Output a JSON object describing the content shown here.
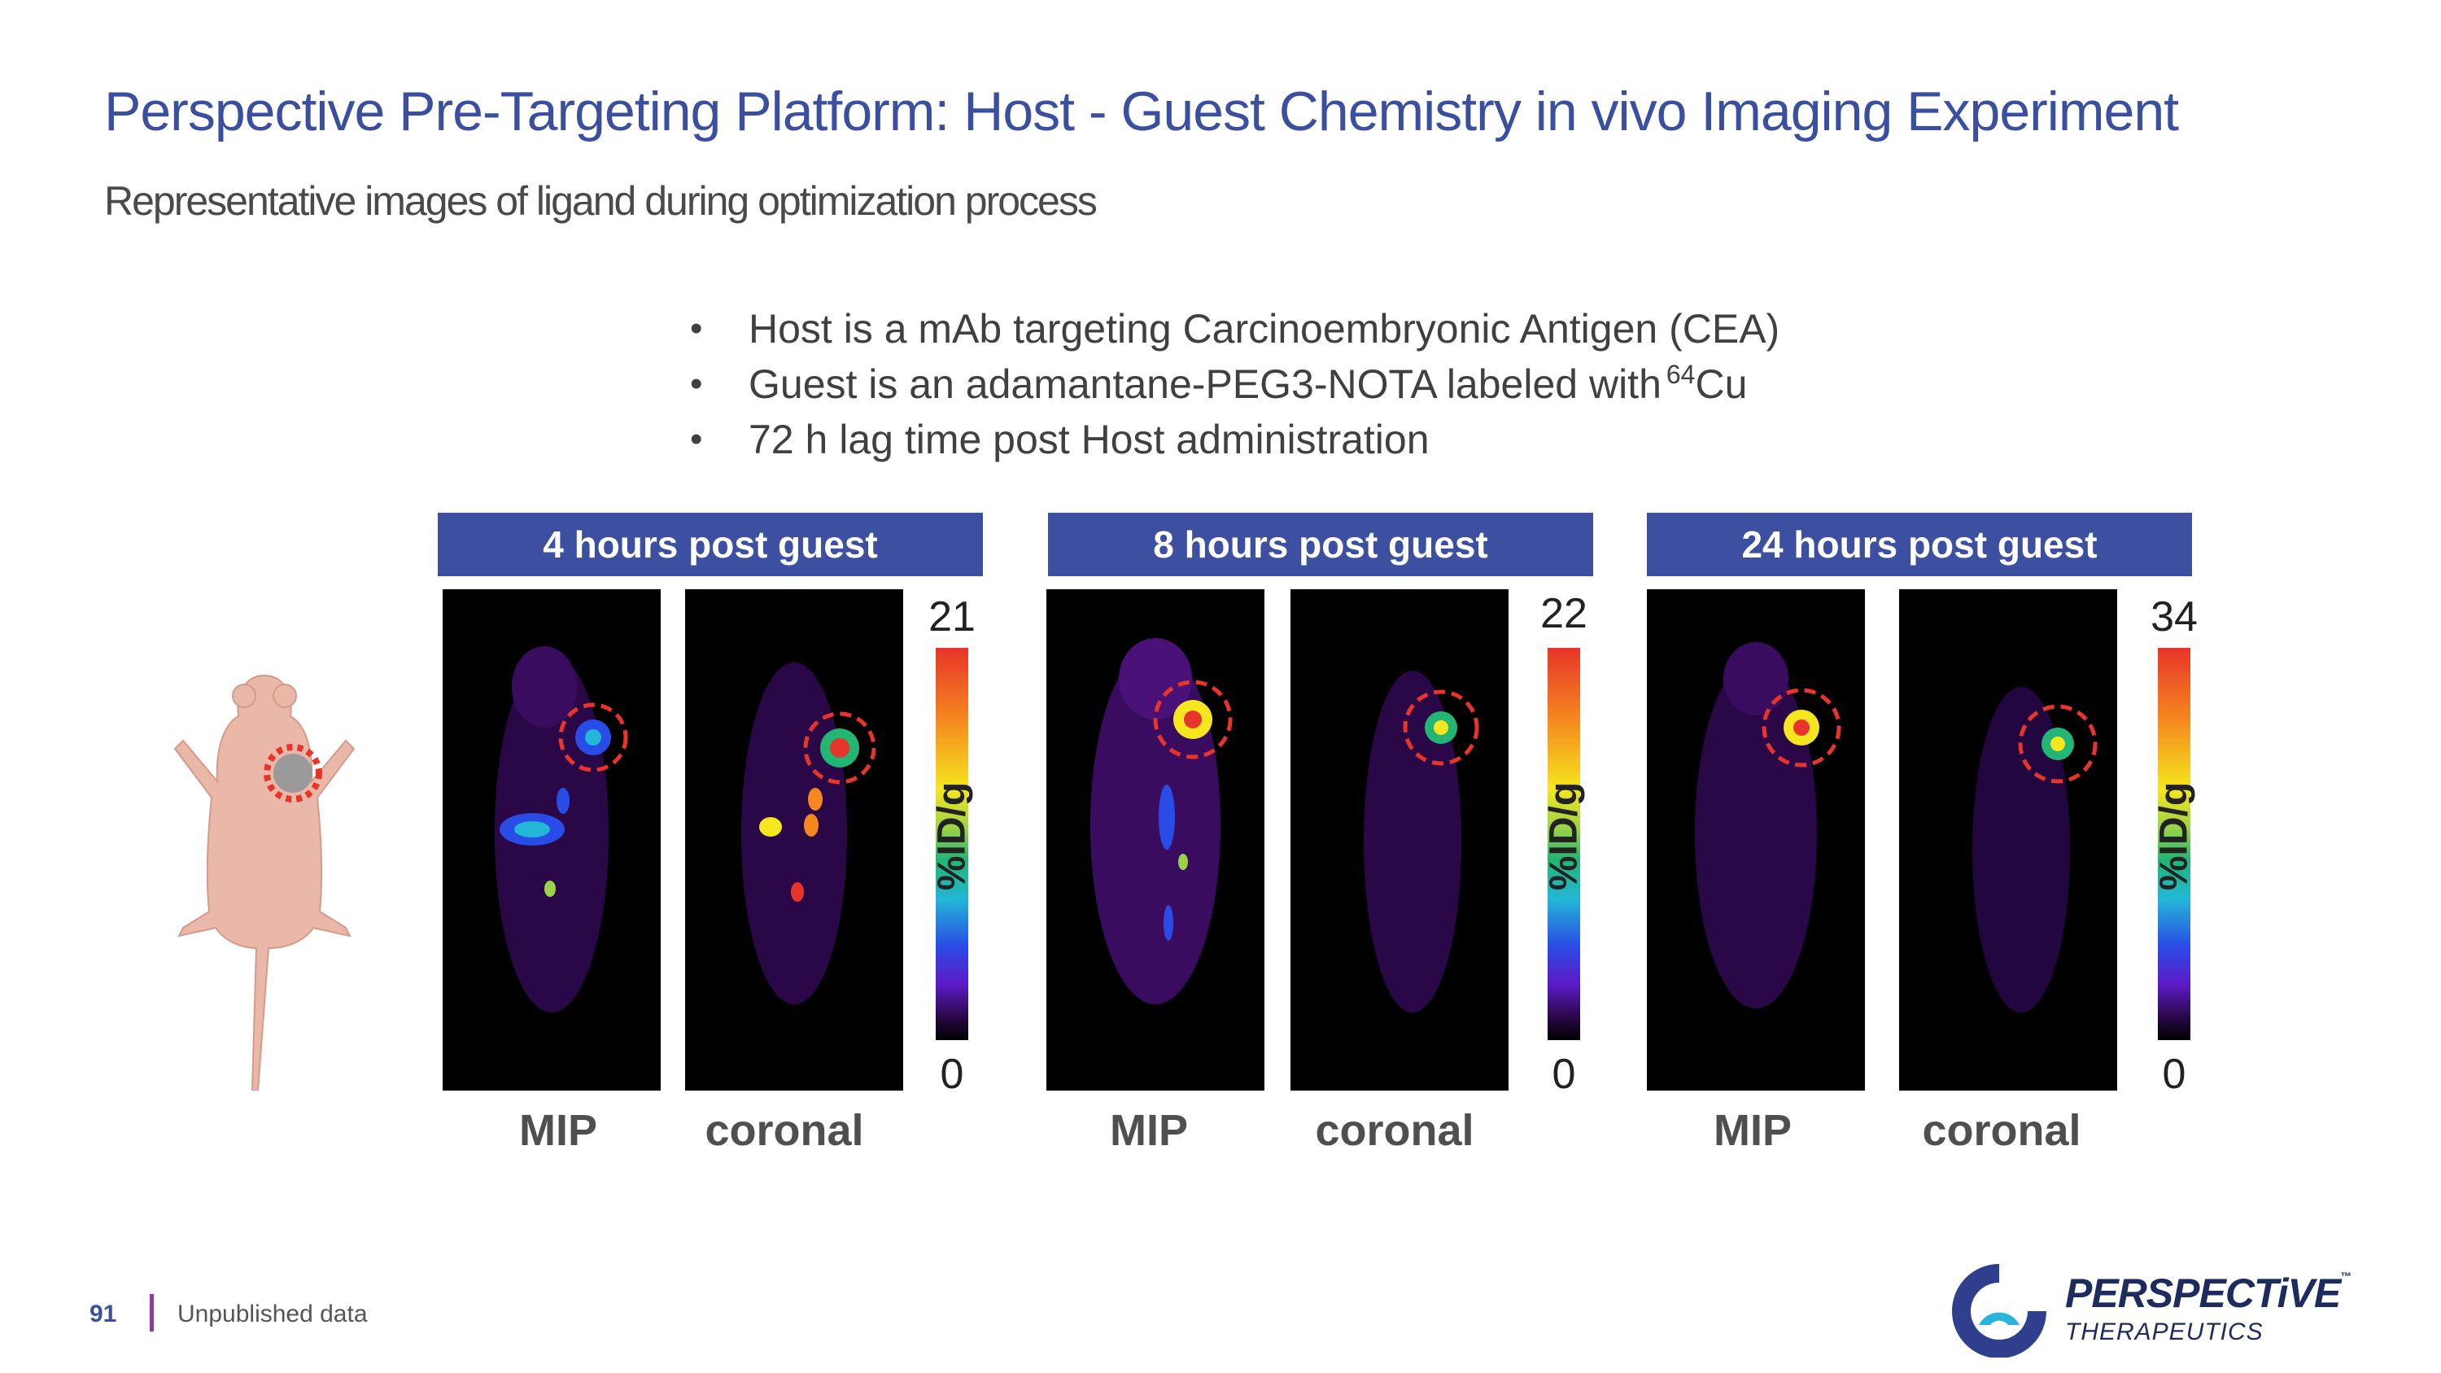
{
  "slide": {
    "title": "Perspective Pre-Targeting Platform: Host - Guest Chemistry in vivo Imaging Experiment",
    "subtitle": "Representative images of ligand during optimization process"
  },
  "bullets": [
    {
      "text": "Host is a mAb targeting Carcinoembryonic Antigen (CEA)"
    },
    {
      "text": "Guest is an adamantane-PEG3-NOTA labeled with",
      "superscript": "64",
      "suffix": "Cu"
    },
    {
      "text": "72 h lag time post Host administration"
    }
  ],
  "panels": [
    {
      "header": "4 hours post guest",
      "mip_label": "MIP",
      "coronal_label": "coronal",
      "scale_max": "21",
      "scale_min": "0",
      "unit": "%ID/g"
    },
    {
      "header": "8 hours post guest",
      "mip_label": "MIP",
      "coronal_label": "coronal",
      "scale_max": "22",
      "scale_min": "0",
      "unit": "%ID/g"
    },
    {
      "header": "24 hours post guest",
      "mip_label": "MIP",
      "coronal_label": "coronal",
      "scale_max": "34",
      "scale_min": "0",
      "unit": "%ID/g"
    }
  ],
  "footer": {
    "page_number": "91",
    "note": "Unpublished data"
  },
  "logo": {
    "wordmark": "PERSPECTiVE",
    "tm": "™",
    "subtitle": "THERAPEUTICS"
  },
  "colors": {
    "title": "#3b4fa0",
    "header_bg": "#3c4fa0",
    "tumor_circle": "#e8342a"
  }
}
